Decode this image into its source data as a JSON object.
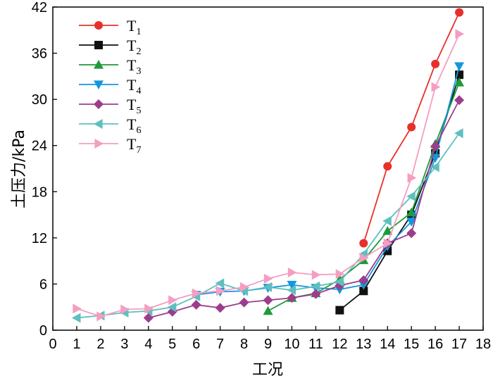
{
  "chart_data": {
    "type": "line",
    "xlabel": "工况",
    "ylabel": "土压力/kPa",
    "xlim": [
      0,
      18
    ],
    "ylim": [
      0,
      42
    ],
    "xticks": [
      0,
      1,
      2,
      3,
      4,
      5,
      6,
      7,
      8,
      9,
      10,
      11,
      12,
      13,
      14,
      15,
      16,
      17,
      18
    ],
    "yticks": [
      0,
      6,
      12,
      18,
      24,
      30,
      36,
      42
    ],
    "grid": false,
    "legend_position": "top-left",
    "series": [
      {
        "name": "T",
        "sub": "1",
        "color": "#e8302a",
        "marker": "circle",
        "x": [
          13,
          14,
          15,
          16,
          17
        ],
        "y": [
          11.3,
          21.3,
          26.4,
          34.6,
          41.3
        ]
      },
      {
        "name": "T",
        "sub": "2",
        "color": "#111111",
        "marker": "square",
        "x": [
          12,
          13,
          14,
          15,
          16,
          17
        ],
        "y": [
          2.6,
          5.1,
          10.3,
          15.0,
          23.0,
          33.2
        ]
      },
      {
        "name": "T",
        "sub": "3",
        "color": "#1f9a3a",
        "marker": "triangle-up",
        "x": [
          9,
          10,
          11,
          12,
          13,
          14,
          15,
          16,
          17
        ],
        "y": [
          2.5,
          4.2,
          4.8,
          6.6,
          9.1,
          12.9,
          15.3,
          24.2,
          32.2
        ]
      },
      {
        "name": "T",
        "sub": "4",
        "color": "#1496dd",
        "marker": "triangle-down",
        "x": [
          6,
          7,
          8,
          9,
          10,
          11,
          12,
          13,
          14,
          15,
          16,
          17
        ],
        "y": [
          4.6,
          5.0,
          5.1,
          5.5,
          5.9,
          5.5,
          5.3,
          5.9,
          10.9,
          14.1,
          22.4,
          34.3
        ]
      },
      {
        "name": "T",
        "sub": "5",
        "color": "#9c3d8c",
        "marker": "diamond",
        "x": [
          4,
          5,
          6,
          7,
          8,
          9,
          10,
          11,
          12,
          13,
          14,
          15,
          16,
          17
        ],
        "y": [
          1.6,
          2.4,
          3.3,
          2.9,
          3.6,
          3.9,
          4.2,
          4.7,
          5.8,
          6.5,
          11.3,
          12.6,
          23.9,
          29.9
        ]
      },
      {
        "name": "T",
        "sub": "6",
        "color": "#5fbfbf",
        "marker": "triangle-left",
        "x": [
          1,
          2,
          3,
          4,
          5,
          6,
          7,
          8,
          9,
          10,
          11,
          12,
          13,
          14,
          15,
          16,
          17
        ],
        "y": [
          1.6,
          1.9,
          2.3,
          2.5,
          3.0,
          4.4,
          6.1,
          5.1,
          5.6,
          5.2,
          5.7,
          6.3,
          9.9,
          14.2,
          17.4,
          21.2,
          25.6
        ]
      },
      {
        "name": "T",
        "sub": "7",
        "color": "#f59dc2",
        "marker": "triangle-right",
        "x": [
          1,
          2,
          3,
          4,
          5,
          6,
          7,
          8,
          9,
          10,
          11,
          12,
          13,
          14,
          15,
          16,
          17
        ],
        "y": [
          2.8,
          1.8,
          2.7,
          2.8,
          3.9,
          4.8,
          5.1,
          5.6,
          6.7,
          7.5,
          7.2,
          7.3,
          9.4,
          11.3,
          19.8,
          31.6,
          38.5
        ]
      }
    ]
  }
}
